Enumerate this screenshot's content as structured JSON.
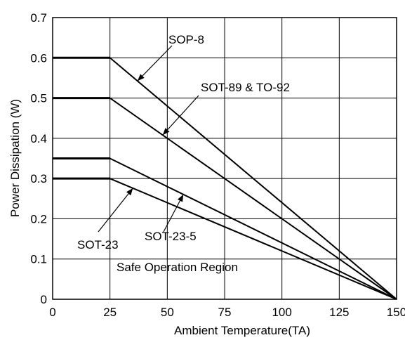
{
  "chart_data": {
    "type": "line",
    "title": "",
    "xlabel": "Ambient Temperature(TA)",
    "ylabel": "Power Dissipation (W)",
    "xlim": [
      0,
      150
    ],
    "ylim": [
      0,
      0.7
    ],
    "x_ticks": [
      "0",
      "25",
      "50",
      "75",
      "100",
      "125",
      "150"
    ],
    "y_ticks": [
      "0",
      "0.1",
      "0.2",
      "0.3",
      "0.4",
      "0.5",
      "0.6",
      "0.7"
    ],
    "grid": true,
    "series": [
      {
        "name": "SOP-8",
        "x": [
          0,
          25,
          150
        ],
        "y": [
          0.6,
          0.6,
          0
        ]
      },
      {
        "name": "SOT-89 & TO-92",
        "x": [
          0,
          25,
          150
        ],
        "y": [
          0.5,
          0.5,
          0
        ]
      },
      {
        "name": "SOT-23-5",
        "x": [
          0,
          25,
          150
        ],
        "y": [
          0.35,
          0.35,
          0
        ]
      },
      {
        "name": "SOT-23",
        "x": [
          0,
          25,
          150
        ],
        "y": [
          0.3,
          0.3,
          0
        ]
      }
    ],
    "annotations": [
      {
        "text": "SOP-8",
        "target_series": "SOP-8"
      },
      {
        "text": "SOT-89 & TO-92",
        "target_series": "SOT-89 & TO-92"
      },
      {
        "text": "SOT-23",
        "target_series": "SOT-23"
      },
      {
        "text": "SOT-23-5",
        "target_series": "SOT-23-5"
      },
      {
        "text": "Safe Operation Region"
      }
    ]
  }
}
